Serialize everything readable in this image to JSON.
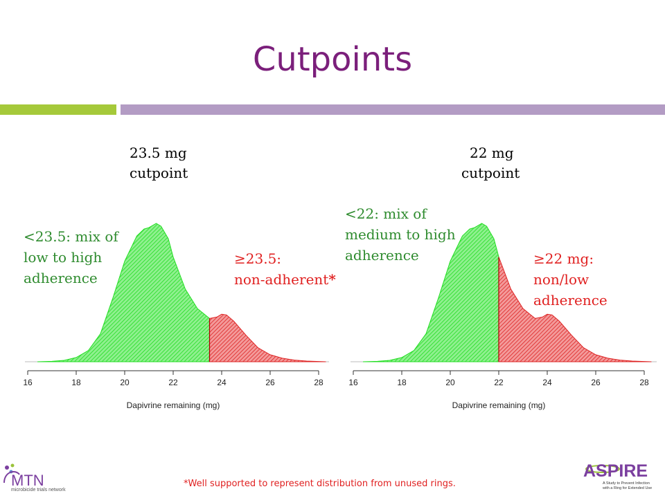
{
  "slide": {
    "title": "Cutpoints",
    "footnote": "*Well supported to represent distribution from unused rings."
  },
  "left_panel": {
    "cutpoint_line1": "23.5 mg",
    "cutpoint_line2": "cutpoint",
    "green_line1": "<23.5: mix of",
    "green_line2": "low to high",
    "green_line3": "adherence",
    "red_line1": "≥23.5:",
    "red_line2": "non-adherent",
    "red_star": "*"
  },
  "right_panel": {
    "cutpoint_line1": "22 mg",
    "cutpoint_line2": "cutpoint",
    "green_line1": "<22: mix of",
    "green_line2": "medium to high",
    "green_line3": "adherence",
    "red_line1": "≥22 mg:",
    "red_line2": "non/low",
    "red_line3": "adherence"
  },
  "logos": {
    "mtn_text": "MTN",
    "mtn_sub": "microbicide trials network",
    "aspire_text": "ASPIRE",
    "aspire_sub1": "A Study to Prevent Infection",
    "aspire_sub2": "with a Ring for Extended Use"
  },
  "colors": {
    "green_fill": "#22dd22",
    "red_fill": "#dd2222",
    "title": "#7b1f7b"
  },
  "chart_data": [
    {
      "type": "area",
      "xlabel": "Dapivrine remaining (mg)",
      "ylabel": "",
      "xlim": [
        16,
        28.4
      ],
      "xticks": [
        16,
        18,
        20,
        22,
        24,
        26,
        28
      ],
      "cutpoint": 23.5,
      "x": [
        16.4,
        17.0,
        17.5,
        18.0,
        18.5,
        19.0,
        19.5,
        20.0,
        20.5,
        20.8,
        21.0,
        21.3,
        21.5,
        21.8,
        22.0,
        22.5,
        23.0,
        23.5,
        23.8,
        24.0,
        24.2,
        24.5,
        25.0,
        25.5,
        26.0,
        26.5,
        27.0,
        27.5,
        28.0,
        28.3
      ],
      "y": [
        0.0,
        0.003,
        0.01,
        0.03,
        0.08,
        0.2,
        0.45,
        0.72,
        0.9,
        0.95,
        0.96,
        0.99,
        0.97,
        0.88,
        0.75,
        0.52,
        0.38,
        0.31,
        0.32,
        0.34,
        0.335,
        0.29,
        0.19,
        0.1,
        0.05,
        0.025,
        0.012,
        0.005,
        0.002,
        0.0
      ]
    },
    {
      "type": "area",
      "xlabel": "Dapivrine remaining (mg)",
      "ylabel": "",
      "xlim": [
        16,
        28.4
      ],
      "xticks": [
        16,
        18,
        20,
        22,
        24,
        26,
        28
      ],
      "cutpoint": 22,
      "x": [
        16.4,
        17.0,
        17.5,
        18.0,
        18.5,
        19.0,
        19.5,
        20.0,
        20.5,
        20.8,
        21.0,
        21.3,
        21.5,
        21.8,
        22.0,
        22.5,
        23.0,
        23.5,
        23.8,
        24.0,
        24.2,
        24.5,
        25.0,
        25.5,
        26.0,
        26.5,
        27.0,
        27.5,
        28.0,
        28.3
      ],
      "y": [
        0.0,
        0.003,
        0.01,
        0.03,
        0.08,
        0.2,
        0.45,
        0.72,
        0.9,
        0.95,
        0.96,
        0.99,
        0.97,
        0.88,
        0.75,
        0.52,
        0.38,
        0.31,
        0.32,
        0.34,
        0.335,
        0.29,
        0.19,
        0.1,
        0.05,
        0.025,
        0.012,
        0.005,
        0.002,
        0.0
      ]
    }
  ]
}
